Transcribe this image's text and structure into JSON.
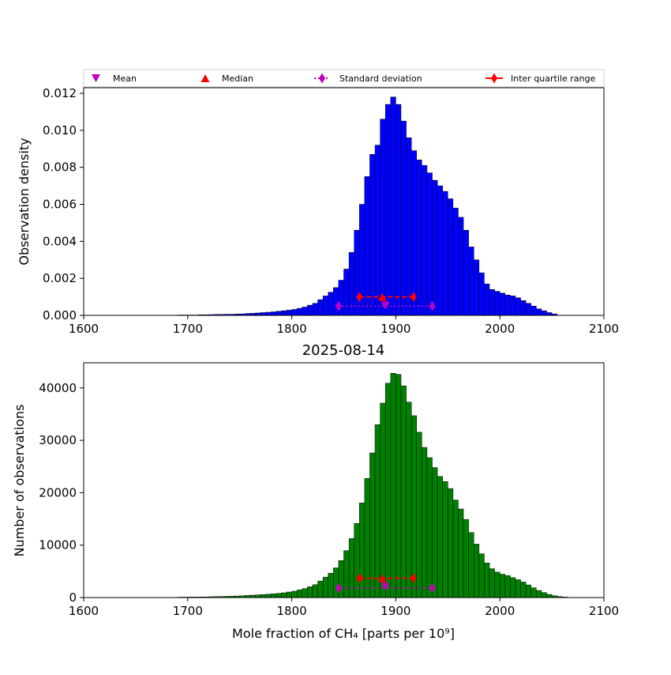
{
  "colors": {
    "top_bars": "#0000ff",
    "bottom_bars": "#008000",
    "bar_edge": "#000000",
    "mean": "#bf00bf",
    "median": "#ff0000",
    "std": "#bf00bf",
    "iqr": "#ff0000"
  },
  "legend": {
    "mean": "Mean",
    "median": "Median",
    "std": "Standard deviation",
    "iqr": "Inter quartile range"
  },
  "chart_data": [
    {
      "type": "bar",
      "panel": "top",
      "title": "",
      "xlabel": "",
      "ylabel": "Observation density",
      "xlim": [
        1600,
        2100
      ],
      "ylim": [
        0,
        0.0123
      ],
      "xticks": [
        "1600",
        "1700",
        "1800",
        "1900",
        "2000",
        "2100"
      ],
      "yticks": [
        "0.000",
        "0.002",
        "0.004",
        "0.006",
        "0.008",
        "0.010",
        "0.012"
      ],
      "bin_start": 1600,
      "bin_width": 5,
      "values": [
        0,
        0,
        0,
        0,
        0,
        0,
        0,
        0,
        0,
        0,
        0,
        0,
        0,
        0,
        0,
        0,
        0,
        0,
        2e-05,
        2e-05,
        2e-05,
        2e-05,
        3e-05,
        3e-05,
        4e-05,
        5e-05,
        5e-05,
        6e-05,
        6e-05,
        7e-05,
        8e-05,
        0.0001,
        0.00011,
        0.00013,
        0.00015,
        0.00017,
        0.00019,
        0.00022,
        0.00025,
        0.00028,
        0.00032,
        0.00038,
        0.00045,
        0.00055,
        0.00065,
        0.00085,
        0.00105,
        0.00125,
        0.0015,
        0.0019,
        0.0025,
        0.0034,
        0.0046,
        0.006,
        0.0075,
        0.0087,
        0.0092,
        0.0106,
        0.0114,
        0.0118,
        0.0114,
        0.0105,
        0.0096,
        0.0089,
        0.0084,
        0.0081,
        0.0077,
        0.0073,
        0.007,
        0.0067,
        0.0063,
        0.0058,
        0.0053,
        0.0046,
        0.0037,
        0.003,
        0.0023,
        0.0017,
        0.0014,
        0.0013,
        0.0012,
        0.0011,
        0.00105,
        0.00095,
        0.0008,
        0.00065,
        0.0005,
        0.00035,
        0.00025,
        0.00015,
        8e-05
      ],
      "stats": {
        "mean": {
          "x": 1890,
          "y": 0.001
        },
        "median": {
          "x": 1887,
          "y": 0.001
        },
        "std": {
          "x": [
            1845,
            1935
          ],
          "y": 0.0005
        },
        "iqr": {
          "x": [
            1865,
            1917
          ],
          "y": 0.001
        }
      }
    },
    {
      "type": "bar",
      "panel": "bottom",
      "title": "2025-08-14",
      "xlabel": "Mole fraction of CH₄ [parts per 10⁹]",
      "ylabel": "Number of observations",
      "xlim": [
        1600,
        2100
      ],
      "ylim": [
        0,
        44800
      ],
      "xticks": [
        "1600",
        "1700",
        "1800",
        "1900",
        "2000",
        "2100"
      ],
      "yticks": [
        "0",
        "10000",
        "20000",
        "30000",
        "40000"
      ],
      "bin_start": 1600,
      "bin_width": 5,
      "values": [
        0,
        0,
        0,
        0,
        0,
        0,
        0,
        0,
        0,
        0,
        0,
        0,
        0,
        0,
        0,
        0,
        0,
        0,
        80,
        80,
        90,
        100,
        110,
        120,
        150,
        180,
        200,
        230,
        260,
        290,
        330,
        400,
        450,
        500,
        560,
        630,
        700,
        800,
        900,
        1050,
        1200,
        1450,
        1700,
        2050,
        2450,
        3150,
        3900,
        4650,
        5650,
        7050,
        8950,
        11250,
        14150,
        18050,
        22750,
        27600,
        33000,
        37100,
        40900,
        42800,
        42600,
        40400,
        37300,
        34700,
        31550,
        28650,
        26700,
        24800,
        23100,
        22150,
        20800,
        18600,
        16900,
        14900,
        12400,
        10200,
        8350,
        6600,
        5500,
        4850,
        4450,
        4200,
        3800,
        3400,
        2950,
        2400,
        1850,
        1350,
        950,
        600,
        350,
        200,
        100
      ],
      "stats": {
        "mean": {
          "x": 1890,
          "y": 3700
        },
        "median": {
          "x": 1887,
          "y": 3700
        },
        "std": {
          "x": [
            1845,
            1935
          ],
          "y": 1800
        },
        "iqr": {
          "x": [
            1865,
            1917
          ],
          "y": 3700
        }
      }
    }
  ]
}
